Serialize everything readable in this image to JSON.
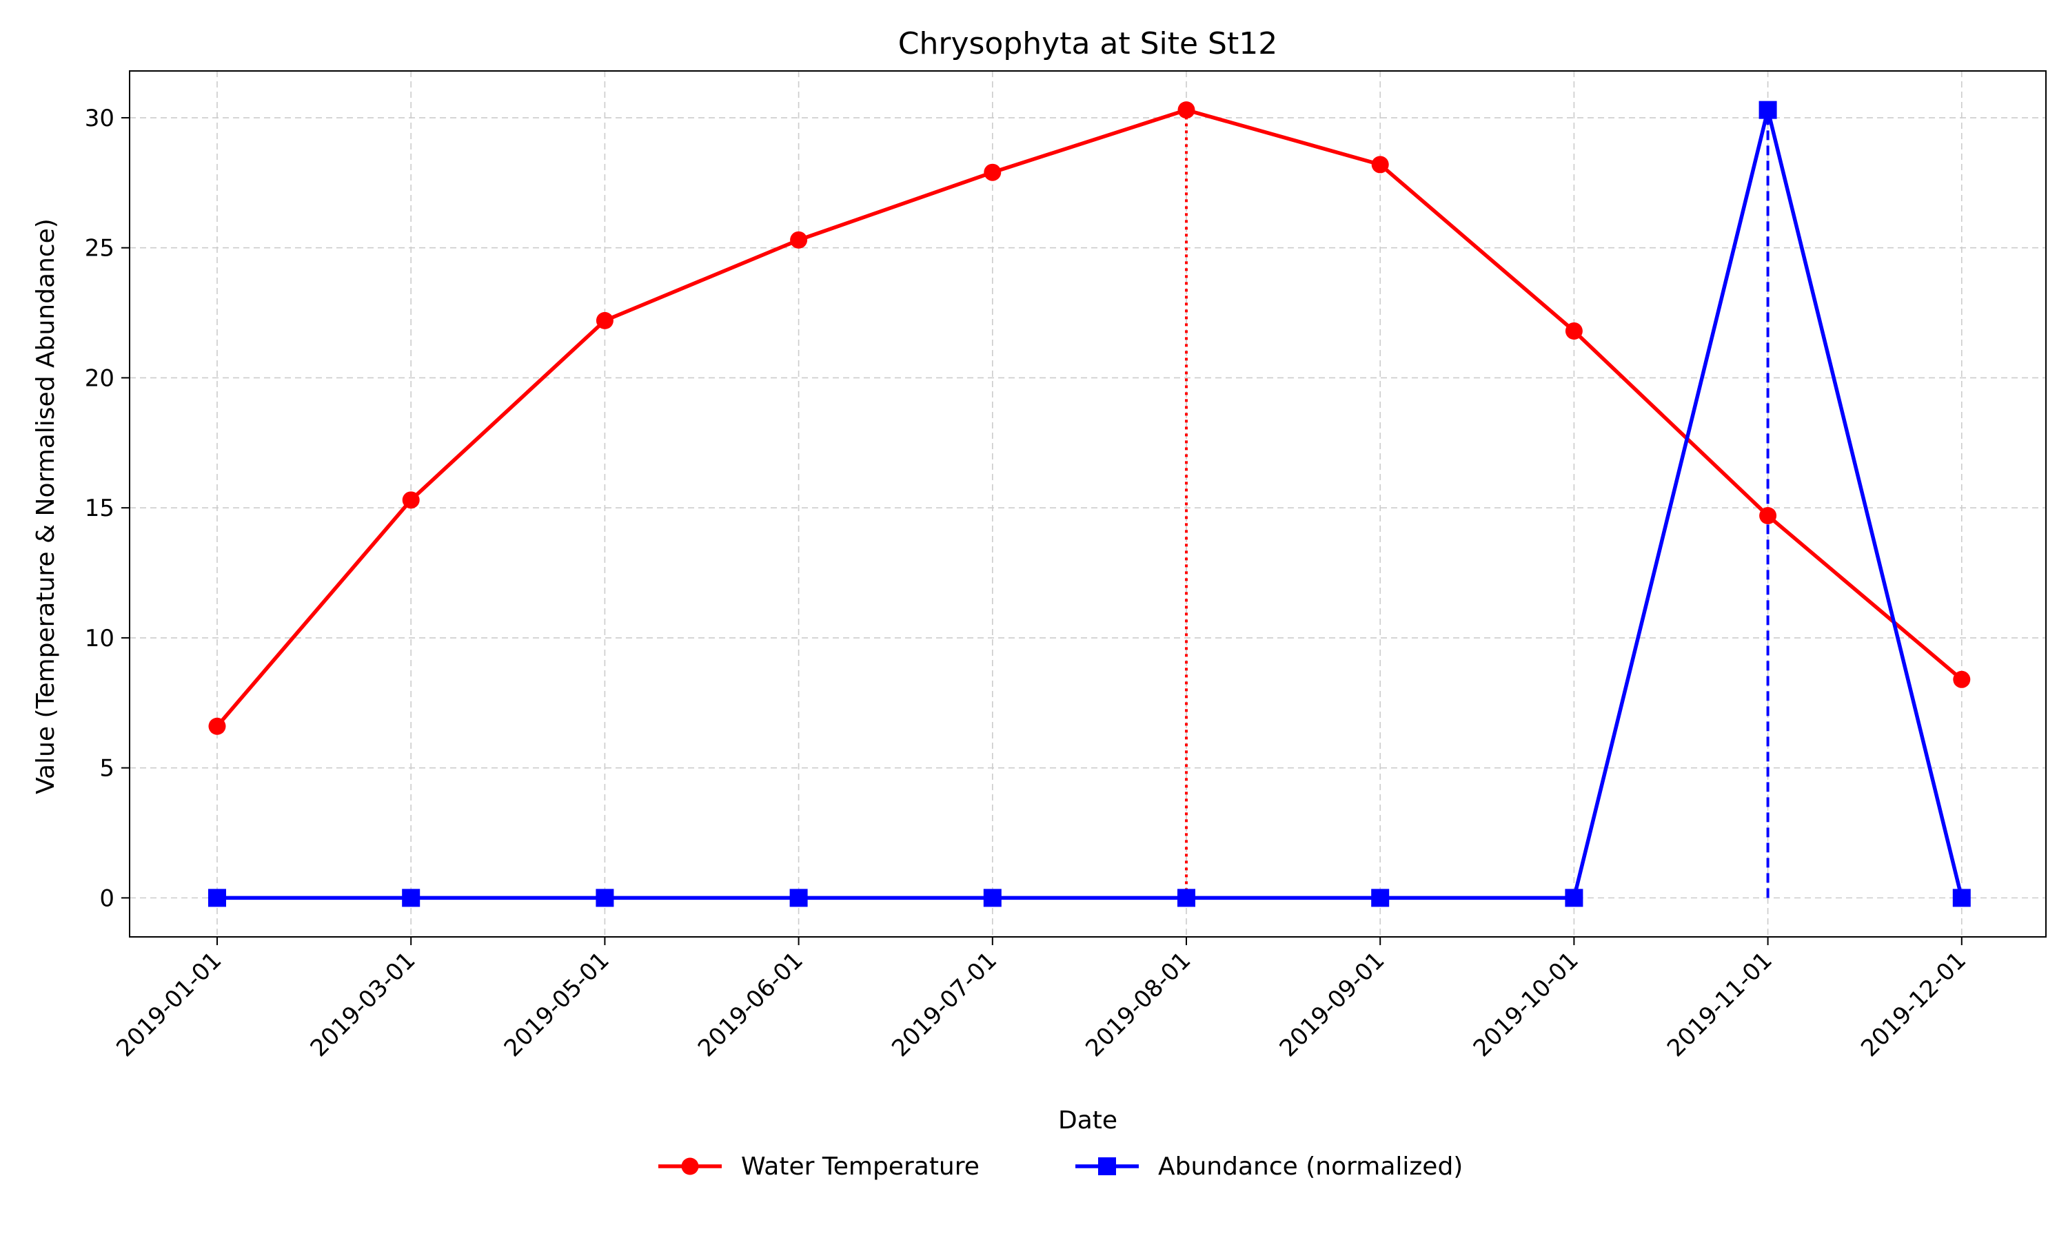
{
  "chart_data": {
    "type": "line",
    "title": "Chrysophyta at Site St12",
    "xlabel": "Date",
    "ylabel": "Value (Temperature & Normalised Abundance)",
    "x": [
      "2019-01-01",
      "2019-03-01",
      "2019-05-01",
      "2019-06-01",
      "2019-07-01",
      "2019-08-01",
      "2019-09-01",
      "2019-10-01",
      "2019-11-01",
      "2019-12-01"
    ],
    "ylim": [
      -1.5,
      31.8
    ],
    "yticks": [
      0,
      5,
      10,
      15,
      20,
      25,
      30
    ],
    "grid": true,
    "legend_position": "bottom-center",
    "series": [
      {
        "name": "Water Temperature",
        "color": "#ff0000",
        "marker": "circle",
        "values": [
          6.6,
          15.3,
          22.2,
          25.3,
          27.9,
          30.3,
          28.2,
          21.8,
          14.7,
          8.4
        ]
      },
      {
        "name": "Abundance (normalized)",
        "color": "#0000ff",
        "marker": "square",
        "values": [
          0,
          0,
          0,
          0,
          0,
          0,
          0,
          0,
          30.3,
          0
        ]
      }
    ],
    "reference_lines": [
      {
        "series": "Water Temperature",
        "x": "2019-08-01",
        "y": 30.3,
        "style": "dotted",
        "color": "#ff0000"
      },
      {
        "series": "Abundance (normalized)",
        "x": "2019-11-01",
        "y": 30.3,
        "style": "dashed",
        "color": "#0000ff"
      }
    ]
  }
}
